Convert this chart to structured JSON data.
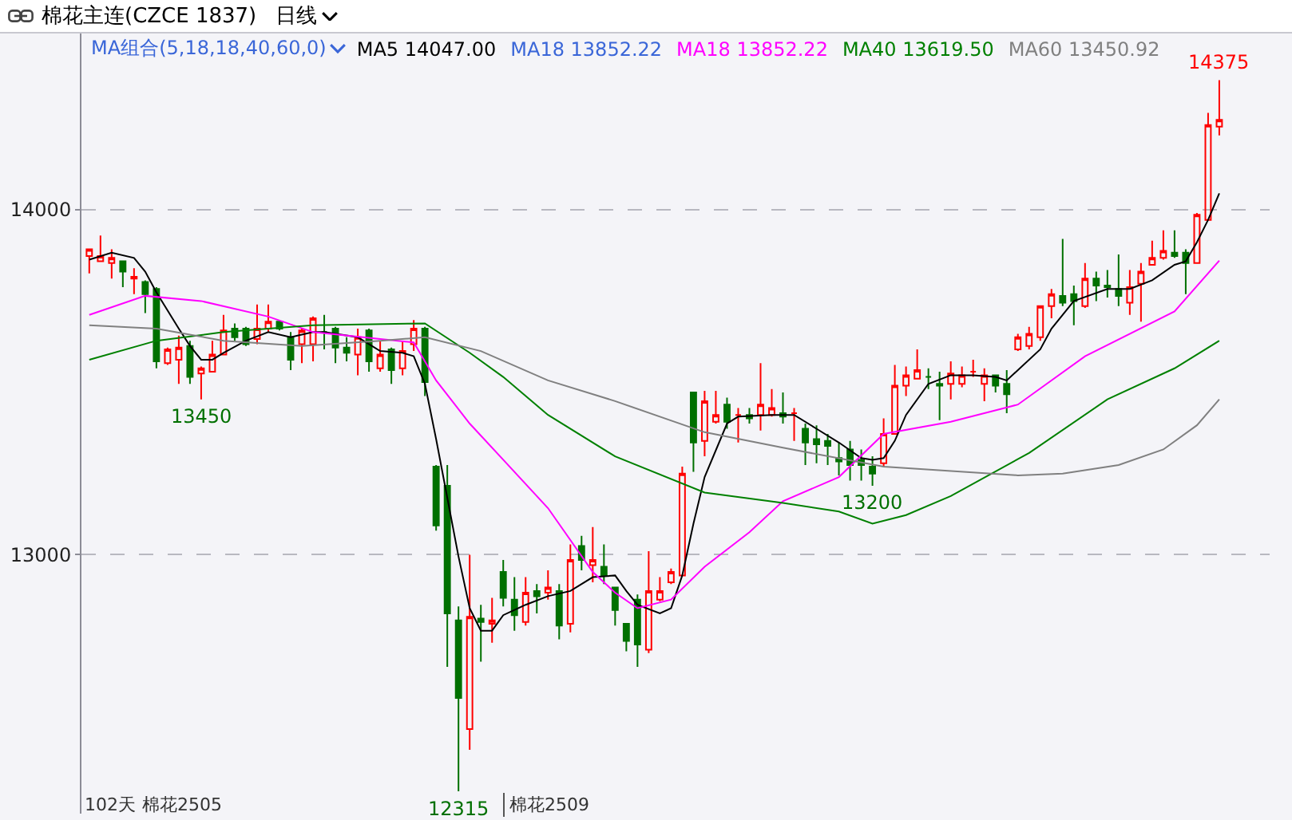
{
  "chart_data": {
    "type": "candlestick",
    "title": "棉花主连(CZCE 1837)",
    "subtitle": "日线",
    "categories": [
      null,
      null,
      null,
      null,
      null,
      null,
      null,
      null,
      null,
      null,
      null,
      null,
      null,
      null,
      null,
      null,
      null,
      null,
      null,
      null,
      null,
      null,
      null,
      null,
      null,
      null,
      null,
      null,
      null,
      null,
      null,
      null,
      null,
      null,
      null,
      null,
      null,
      null,
      null,
      null,
      null,
      null,
      null,
      null,
      null,
      null,
      null,
      null,
      null,
      null,
      null,
      null,
      null,
      null,
      null,
      null,
      null,
      null,
      null,
      null,
      null,
      null,
      null,
      null,
      null,
      null,
      null,
      null,
      null,
      null,
      null,
      null,
      null,
      null,
      null,
      null,
      null,
      null,
      null,
      null,
      null,
      null,
      null,
      null,
      null,
      null,
      null,
      null,
      null,
      null,
      null,
      null,
      null,
      null,
      null,
      null,
      null,
      null,
      null,
      null,
      null,
      null
    ],
    "ohlc": [
      [
        13865,
        13885,
        13815,
        13885
      ],
      [
        13850,
        13925,
        13850,
        13865
      ],
      [
        13845,
        13885,
        13800,
        13860
      ],
      [
        13850,
        13850,
        13775,
        13820
      ],
      [
        13800,
        13830,
        13755,
        13805
      ],
      [
        13790,
        13795,
        13700,
        13755
      ],
      [
        13770,
        13775,
        13540,
        13560
      ],
      [
        13555,
        13600,
        13550,
        13595
      ],
      [
        13565,
        13635,
        13495,
        13600
      ],
      [
        13605,
        13620,
        13495,
        13515
      ],
      [
        13525,
        13545,
        13450,
        13540
      ],
      [
        13530,
        13620,
        13530,
        13580
      ],
      [
        13580,
        13695,
        13580,
        13650
      ],
      [
        13655,
        13670,
        13620,
        13630
      ],
      [
        13655,
        13660,
        13605,
        13610
      ],
      [
        13625,
        13725,
        13610,
        13655
      ],
      [
        13655,
        13725,
        13645,
        13675
      ],
      [
        13675,
        13680,
        13650,
        13655
      ],
      [
        13630,
        13645,
        13535,
        13565
      ],
      [
        13610,
        13655,
        13555,
        13650
      ],
      [
        13610,
        13690,
        13560,
        13685
      ],
      [
        13645,
        13695,
        13595,
        13645
      ],
      [
        13655,
        13660,
        13555,
        13600
      ],
      [
        13600,
        13630,
        13560,
        13585
      ],
      [
        13580,
        13655,
        13520,
        13630
      ],
      [
        13650,
        13655,
        13530,
        13560
      ],
      [
        13540,
        13620,
        13530,
        13580
      ],
      [
        13595,
        13600,
        13495,
        13535
      ],
      [
        13540,
        13620,
        13520,
        13590
      ],
      [
        13610,
        13680,
        13590,
        13655
      ],
      [
        13655,
        13660,
        13460,
        13500
      ],
      [
        13255,
        13260,
        13070,
        13085
      ],
      [
        13200,
        13260,
        12675,
        12830
      ],
      [
        12810,
        12850,
        12315,
        12585
      ],
      [
        12495,
        13000,
        12435,
        12820
      ],
      [
        12815,
        12855,
        12690,
        12805
      ],
      [
        12800,
        12875,
        12745,
        12810
      ],
      [
        12950,
        12985,
        12850,
        12875
      ],
      [
        12870,
        12935,
        12780,
        12825
      ],
      [
        12805,
        12935,
        12795,
        12890
      ],
      [
        12895,
        12915,
        12830,
        12880
      ],
      [
        12890,
        12955,
        12870,
        12905
      ],
      [
        12895,
        12915,
        12755,
        12795
      ],
      [
        12800,
        13030,
        12775,
        12985
      ],
      [
        13025,
        13055,
        12955,
        12985
      ],
      [
        12970,
        13080,
        12920,
        12985
      ],
      [
        12965,
        13030,
        12915,
        12940
      ],
      [
        12905,
        12905,
        12795,
        12840
      ],
      [
        12800,
        12800,
        12720,
        12750
      ],
      [
        12870,
        12885,
        12675,
        12740
      ],
      [
        12725,
        13010,
        12715,
        12895
      ],
      [
        12870,
        12935,
        12865,
        12895
      ],
      [
        12920,
        12960,
        12915,
        12950
      ],
      [
        12940,
        13255,
        12940,
        13235
      ],
      [
        13470,
        13470,
        13240,
        13325
      ],
      [
        13330,
        13475,
        13285,
        13445
      ],
      [
        13385,
        13475,
        13380,
        13405
      ],
      [
        13435,
        13455,
        13365,
        13385
      ],
      [
        13405,
        13425,
        13325,
        13405
      ],
      [
        13405,
        13425,
        13380,
        13395
      ],
      [
        13405,
        13555,
        13360,
        13435
      ],
      [
        13405,
        13480,
        13400,
        13425
      ],
      [
        13410,
        13470,
        13380,
        13400
      ],
      [
        13410,
        13425,
        13330,
        13410
      ],
      [
        13365,
        13380,
        13260,
        13325
      ],
      [
        13335,
        13375,
        13265,
        13320
      ],
      [
        13330,
        13350,
        13260,
        13315
      ],
      [
        13280,
        13325,
        13230,
        13270
      ],
      [
        13305,
        13330,
        13215,
        13260
      ],
      [
        13275,
        13305,
        13215,
        13260
      ],
      [
        13255,
        13285,
        13200,
        13235
      ],
      [
        13265,
        13395,
        13255,
        13350
      ],
      [
        13350,
        13550,
        13350,
        13490
      ],
      [
        13490,
        13545,
        13460,
        13520
      ],
      [
        13510,
        13595,
        13510,
        13535
      ],
      [
        13515,
        13540,
        13480,
        13515
      ],
      [
        13495,
        13530,
        13390,
        13490
      ],
      [
        13495,
        13560,
        13450,
        13525
      ],
      [
        13495,
        13545,
        13485,
        13520
      ],
      [
        13530,
        13565,
        13515,
        13530
      ],
      [
        13495,
        13540,
        13445,
        13520
      ],
      [
        13520,
        13520,
        13470,
        13490
      ],
      [
        13495,
        13535,
        13410,
        13465
      ],
      [
        13595,
        13640,
        13590,
        13630
      ],
      [
        13605,
        13660,
        13595,
        13640
      ],
      [
        13630,
        13720,
        13620,
        13720
      ],
      [
        13720,
        13770,
        13685,
        13755
      ],
      [
        13750,
        13915,
        13720,
        13730
      ],
      [
        13755,
        13780,
        13665,
        13735
      ],
      [
        13720,
        13845,
        13715,
        13800
      ],
      [
        13800,
        13820,
        13735,
        13780
      ],
      [
        13780,
        13825,
        13745,
        13775
      ],
      [
        13770,
        13870,
        13720,
        13750
      ],
      [
        13730,
        13825,
        13695,
        13775
      ],
      [
        13785,
        13845,
        13675,
        13820
      ],
      [
        13840,
        13910,
        13840,
        13860
      ],
      [
        13860,
        13940,
        13855,
        13880
      ],
      [
        13875,
        13940,
        13860,
        13865
      ],
      [
        13875,
        13885,
        13755,
        13845
      ],
      [
        13845,
        13990,
        13845,
        13985
      ],
      [
        13970,
        14280,
        13970,
        14245
      ],
      [
        14240,
        14375,
        14215,
        14260
      ]
    ],
    "series": [
      {
        "name": "MA5 14047.00",
        "color": "#000000",
        "type": "line",
        "values": [
          13855,
          null,
          13875,
          null,
          13860,
          13820,
          13760,
          null,
          13655,
          13605,
          13565,
          13565,
          13585,
          null,
          13620,
          null,
          13645,
          null,
          13630,
          null,
          13645,
          13645,
          null,
          null,
          13630,
          null,
          13590,
          null,
          13585,
          13575,
          13495,
          13335,
          13165,
          12995,
          12845,
          12780,
          12780,
          12825,
          null,
          12855,
          null,
          12880,
          null,
          12895,
          null,
          12935,
          null,
          12940,
          12895,
          12855,
          null,
          12830,
          12845,
          12940,
          13090,
          13225,
          null,
          13380,
          13400,
          null,
          null,
          13405,
          13405,
          13405,
          null,
          13365,
          null,
          13325,
          null,
          13280,
          13275,
          13280,
          13330,
          13405,
          null,
          13495,
          null,
          13520,
          null,
          13520,
          null,
          13515,
          13505,
          null,
          null,
          13595,
          13655,
          null,
          13735,
          null,
          null,
          13770,
          null,
          13770,
          null,
          13795,
          null,
          13840,
          13850,
          13905,
          13970,
          14047
        ]
      },
      {
        "name": "MA18 13852.22",
        "color": "#ff00ff",
        "type": "line",
        "values": [
          13695,
          null,
          null,
          null,
          null,
          13750,
          null,
          null,
          null,
          null,
          13735,
          null,
          null,
          null,
          null,
          null,
          13690,
          null,
          null,
          null,
          13645,
          null,
          null,
          null,
          null,
          null,
          null,
          null,
          null,
          13615,
          null,
          13505,
          null,
          null,
          13380,
          null,
          null,
          13275,
          null,
          null,
          null,
          13135,
          null,
          null,
          null,
          12950,
          null,
          12890,
          null,
          12845,
          null,
          null,
          12870,
          null,
          null,
          12965,
          null,
          null,
          null,
          13065,
          null,
          null,
          13155,
          null,
          null,
          null,
          null,
          13225,
          null,
          null,
          null,
          13350,
          null,
          null,
          null,
          null,
          null,
          13385,
          null,
          null,
          null,
          null,
          null,
          13435,
          null,
          null,
          null,
          null,
          null,
          13575,
          null,
          null,
          null,
          null,
          null,
          null,
          null,
          13705,
          null,
          null,
          null,
          13852
        ]
      },
      {
        "name": "MA40 13619.50",
        "color": "#008000",
        "type": "line",
        "values": [
          13565,
          null,
          null,
          null,
          null,
          null,
          13620,
          null,
          null,
          null,
          null,
          null,
          13645,
          null,
          null,
          null,
          null,
          null,
          null,
          null,
          13665,
          null,
          null,
          null,
          null,
          null,
          null,
          null,
          null,
          null,
          13670,
          null,
          null,
          null,
          13585,
          null,
          null,
          13515,
          null,
          null,
          null,
          13405,
          null,
          null,
          null,
          null,
          null,
          13285,
          null,
          null,
          null,
          null,
          null,
          null,
          null,
          13180,
          null,
          null,
          null,
          null,
          null,
          null,
          13150,
          null,
          null,
          null,
          null,
          13125,
          null,
          null,
          13090,
          null,
          null,
          13115,
          null,
          null,
          null,
          13170,
          null,
          null,
          null,
          null,
          null,
          null,
          13295,
          null,
          null,
          null,
          null,
          null,
          null,
          13450,
          null,
          null,
          null,
          null,
          null,
          13540,
          null,
          null,
          null,
          13620
        ]
      },
      {
        "name": "MA60 13450.92",
        "color": "#808080",
        "type": "line",
        "values": [
          13665,
          null,
          null,
          null,
          null,
          null,
          13655,
          null,
          null,
          null,
          null,
          null,
          13620,
          null,
          null,
          null,
          null,
          null,
          null,
          13605,
          null,
          null,
          null,
          null,
          null,
          null,
          13620,
          null,
          null,
          null,
          13630,
          null,
          null,
          null,
          null,
          13590,
          null,
          null,
          null,
          null,
          null,
          13505,
          null,
          null,
          null,
          null,
          null,
          13445,
          null,
          null,
          null,
          null,
          null,
          null,
          null,
          13355,
          null,
          null,
          null,
          null,
          null,
          null,
          13310,
          null,
          null,
          null,
          null,
          null,
          null,
          null,
          null,
          13255,
          null,
          null,
          null,
          null,
          null,
          null,
          null,
          null,
          null,
          null,
          null,
          13230,
          null,
          null,
          null,
          13235,
          null,
          null,
          null,
          null,
          13260,
          null,
          null,
          null,
          13305,
          null,
          null,
          13375,
          null,
          13450
        ]
      }
    ],
    "ylim": [
      12250,
      14510
    ],
    "yticks": [
      13000,
      14000
    ],
    "grid": "y",
    "tick_labels": "y",
    "legend": "top",
    "annotations": [
      "MA组合(5,18,18,40,60,0)",
      "MA18 13852.22",
      {
        "text": "14375",
        "y": 14375
      },
      {
        "text": "13450",
        "y": 13450
      },
      {
        "text": "13200",
        "y": 13200
      },
      {
        "text": "12315",
        "y": 12315
      },
      "102天",
      "棉花2505",
      "棉花2509"
    ]
  }
}
